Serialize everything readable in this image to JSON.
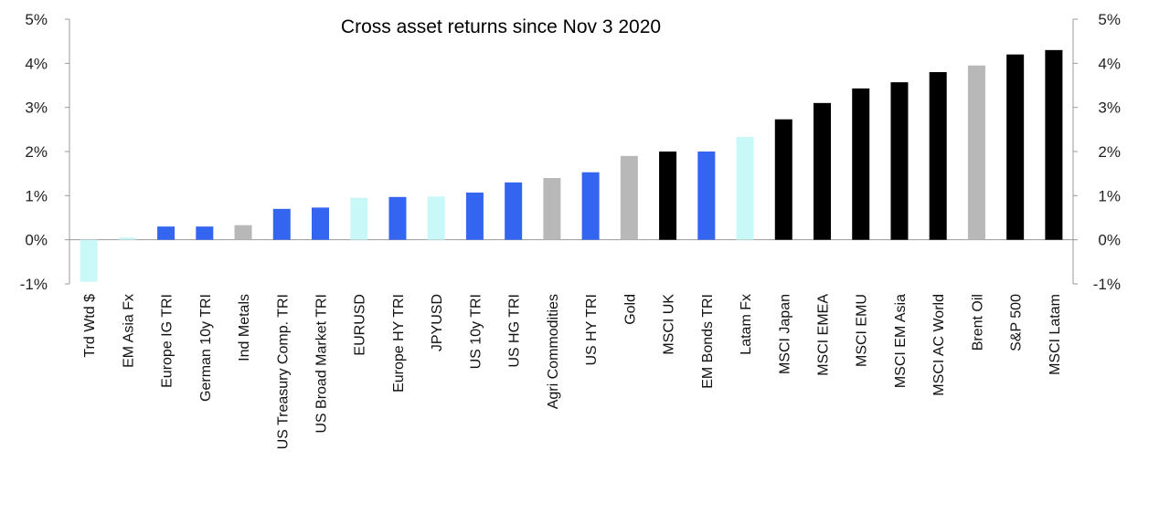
{
  "chart_data": {
    "type": "bar",
    "title": "Cross asset returns since Nov 3 2020",
    "xlabel": "",
    "ylabel": "",
    "ylim": [
      -1,
      5
    ],
    "yticks": [
      -1,
      0,
      1,
      2,
      3,
      4,
      5
    ],
    "ytick_labels": [
      "-1%",
      "0%",
      "1%",
      "2%",
      "3%",
      "4%",
      "5%"
    ],
    "grid": false,
    "legend": "none",
    "colors": {
      "blue": "#3465f0",
      "black": "#000000",
      "grey": "#b8b8b8",
      "light_cyan": "#c8f8f8"
    },
    "categories": [
      "Trd Wtd $",
      "EM Asia Fx",
      "Europe IG TRI",
      "German 10y TRI",
      "Ind Metals",
      "US Treasury Comp. TRI",
      "US Broad Market TRI",
      "EURUSD",
      "Europe HY TRI",
      "JPYUSD",
      "US 10y TRI",
      "US HG TRI",
      "Agri Commodities",
      "US HY TRI",
      "Gold",
      "MSCI UK",
      "EM Bonds TRI",
      "Latam Fx",
      "MSCI Japan",
      "MSCI EMEA",
      "MSCI EMU",
      "MSCI EM Asia",
      "MSCI AC World",
      "Brent Oil",
      "S&P 500",
      "MSCI Latam"
    ],
    "values": [
      -0.95,
      0.05,
      0.3,
      0.3,
      0.33,
      0.7,
      0.73,
      0.95,
      0.97,
      0.98,
      1.07,
      1.3,
      1.4,
      1.53,
      1.9,
      2.0,
      2.0,
      2.33,
      2.73,
      3.1,
      3.43,
      3.57,
      3.8,
      3.95,
      4.2,
      4.3
    ],
    "bar_colors": [
      "light_cyan",
      "light_cyan",
      "blue",
      "blue",
      "grey",
      "blue",
      "blue",
      "light_cyan",
      "blue",
      "light_cyan",
      "blue",
      "blue",
      "grey",
      "blue",
      "grey",
      "black",
      "blue",
      "light_cyan",
      "black",
      "black",
      "black",
      "black",
      "black",
      "grey",
      "black",
      "black"
    ]
  }
}
